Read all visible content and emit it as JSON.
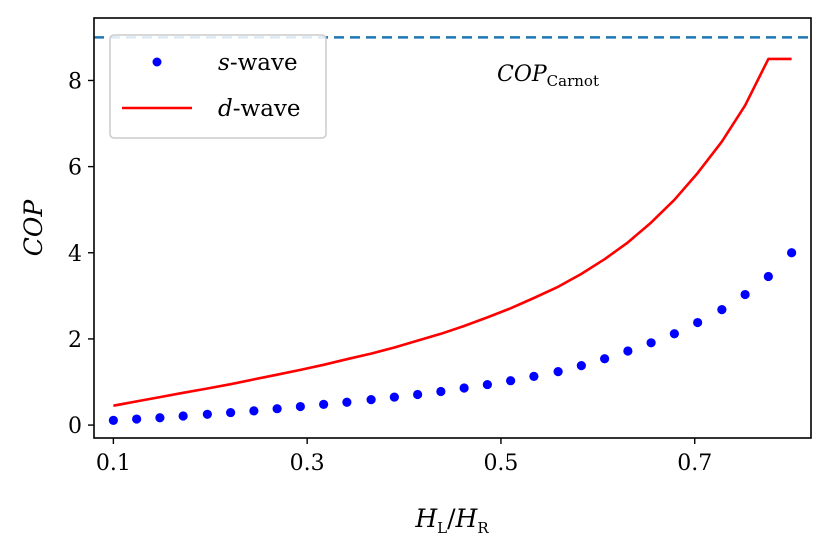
{
  "chart_data": {
    "type": "scatter",
    "title": "",
    "xlabel": {
      "main": "H",
      "sub_l": "L",
      "slash": "/",
      "main2": "H",
      "sub_r": "R"
    },
    "ylabel": "COP",
    "xlim": [
      0.08,
      0.82
    ],
    "ylim": [
      -0.3,
      9.45
    ],
    "xticks": [
      0.1,
      0.3,
      0.5,
      0.7
    ],
    "xtick_labels": [
      "0.1",
      "0.3",
      "0.5",
      "0.7"
    ],
    "yticks": [
      0,
      2,
      4,
      6,
      8
    ],
    "ytick_labels": [
      "0",
      "2",
      "4",
      "6",
      "8"
    ],
    "series": [
      {
        "name": "s-wave",
        "label_italic": "s",
        "label_rest": "-wave",
        "style": "dots",
        "color": "#0000ff",
        "x": [
          0.1,
          0.124,
          0.148,
          0.172,
          0.197,
          0.221,
          0.245,
          0.269,
          0.293,
          0.317,
          0.341,
          0.366,
          0.39,
          0.414,
          0.438,
          0.462,
          0.486,
          0.51,
          0.534,
          0.559,
          0.583,
          0.607,
          0.631,
          0.655,
          0.679,
          0.703,
          0.728,
          0.752,
          0.776,
          0.8
        ],
        "y": [
          0.11,
          0.14,
          0.17,
          0.21,
          0.25,
          0.29,
          0.33,
          0.38,
          0.43,
          0.48,
          0.53,
          0.59,
          0.65,
          0.71,
          0.78,
          0.86,
          0.94,
          1.03,
          1.13,
          1.24,
          1.38,
          1.54,
          1.72,
          1.91,
          2.12,
          2.38,
          2.68,
          3.03,
          3.45,
          4.0
        ]
      },
      {
        "name": "d-wave",
        "label_italic": "d",
        "label_rest": "-wave",
        "style": "line",
        "color": "#ff0000",
        "x": [
          0.1,
          0.124,
          0.148,
          0.172,
          0.197,
          0.221,
          0.245,
          0.269,
          0.293,
          0.317,
          0.341,
          0.366,
          0.39,
          0.414,
          0.438,
          0.462,
          0.486,
          0.51,
          0.534,
          0.559,
          0.583,
          0.607,
          0.631,
          0.655,
          0.679,
          0.703,
          0.728,
          0.752,
          0.776,
          0.8
        ],
        "y": [
          0.45,
          0.55,
          0.65,
          0.75,
          0.85,
          0.95,
          1.06,
          1.17,
          1.28,
          1.4,
          1.53,
          1.66,
          1.8,
          1.96,
          2.12,
          2.3,
          2.5,
          2.71,
          2.95,
          3.21,
          3.51,
          3.85,
          4.24,
          4.7,
          5.23,
          5.85,
          6.58,
          7.42,
          8.5,
          8.5
        ]
      }
    ],
    "reference_line": {
      "name": "COP_Carnot",
      "y": 9.0,
      "color": "#1f77b4",
      "style": "dashed",
      "label_main": "COP",
      "label_sub": "Carnot"
    },
    "legend": "top-left",
    "grid": false
  }
}
